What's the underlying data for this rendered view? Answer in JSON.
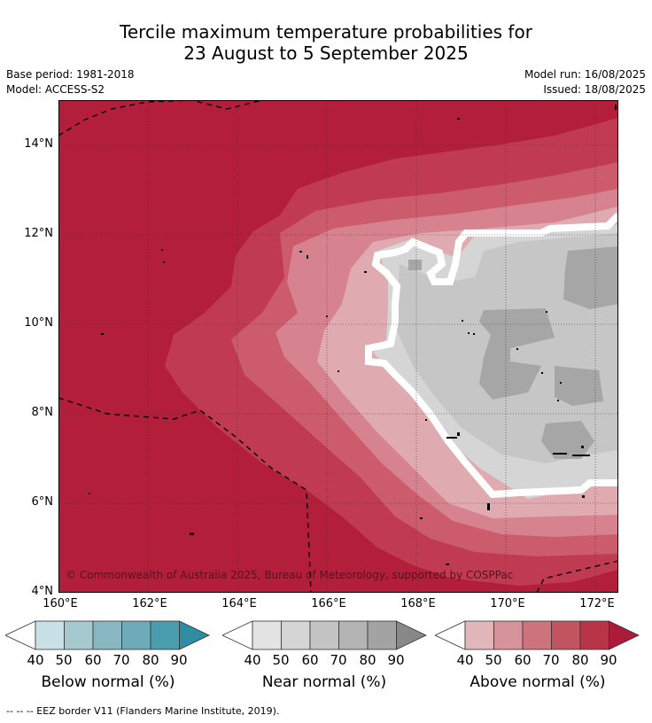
{
  "title": {
    "line1": "Tercile maximum temperature probabilities for",
    "line2": "23 August to 5 September 2025"
  },
  "info": {
    "base_period": "Base period: 1981-2018",
    "model": "Model: ACCESS-S2",
    "model_run": "Model run: 16/08/2025",
    "issued": "Issued: 18/08/2025"
  },
  "map": {
    "y_ticks": [
      "14°N",
      "12°N",
      "10°N",
      "8°N",
      "6°N",
      "4°N"
    ],
    "x_ticks": [
      "160°E",
      "162°E",
      "164°E",
      "166°E",
      "168°E",
      "170°E",
      "172°E"
    ],
    "copyright": "© Commonwealth of Australia 2025, Bureau of Meteorology, supported by COSPPac",
    "colors": {
      "above_90": "#b31e3a",
      "above_80": "#c03a51",
      "above_70": "#cc5b6c",
      "above_60": "#d7838f",
      "above_50": "#e0aab1",
      "near_40": "#d5d5d5",
      "near_50": "#c6c6c6",
      "near_60": "#a6a6a6",
      "near_boundary": "#ffffff"
    }
  },
  "colorbars": [
    {
      "label": "Below normal (%)",
      "ticks": [
        "40",
        "50",
        "60",
        "70",
        "80",
        "90"
      ],
      "colors": [
        "#ffffff",
        "#c9e0e6",
        "#a6c8cf",
        "#88b6c1",
        "#6eabba",
        "#4a9caf",
        "#2e8ca3"
      ]
    },
    {
      "label": "Near normal (%)",
      "ticks": [
        "40",
        "50",
        "60",
        "70",
        "80",
        "90"
      ],
      "colors": [
        "#ffffff",
        "#e3e3e3",
        "#d5d5d5",
        "#c4c4c4",
        "#b4b4b4",
        "#a3a3a3",
        "#888888"
      ]
    },
    {
      "label": "Above normal (%)",
      "ticks": [
        "40",
        "50",
        "60",
        "70",
        "80",
        "90"
      ],
      "colors": [
        "#ffffff",
        "#e2b7bc",
        "#d69399",
        "#cc737c",
        "#c2555f",
        "#b83447",
        "#ad1b3a"
      ]
    }
  ],
  "footnote": "--  --  -- EEZ border V11 (Flanders Marine Institute, 2019)."
}
